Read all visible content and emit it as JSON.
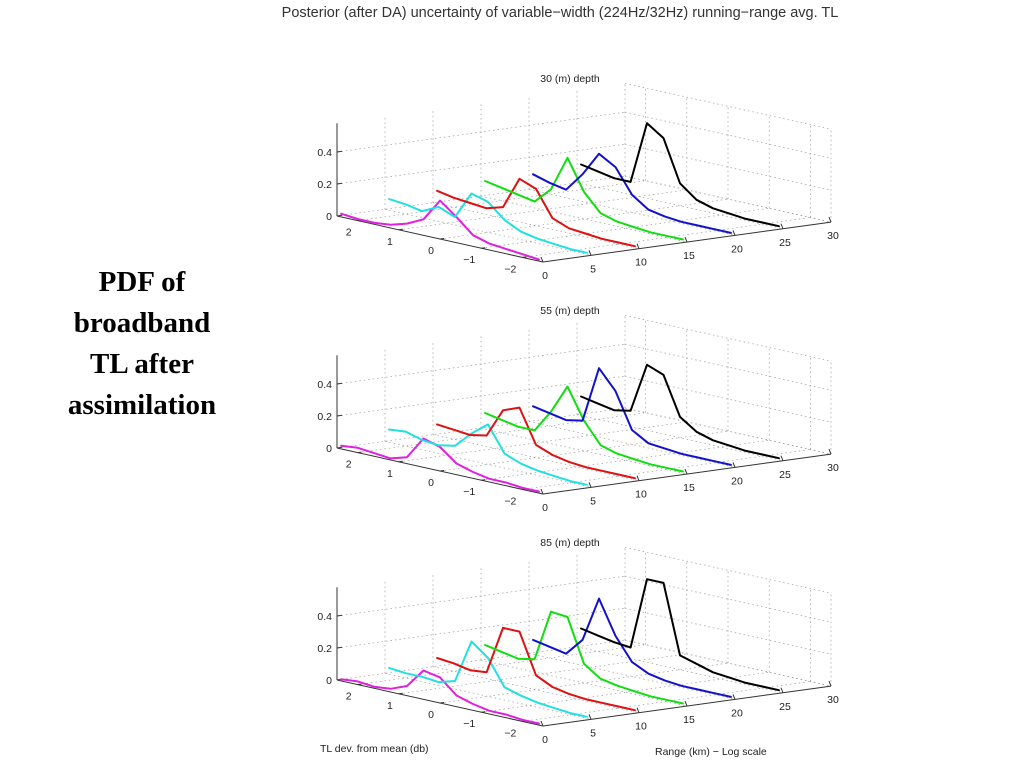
{
  "title": "Posterior (after DA) uncertainty of variable−width (224Hz/32Hz) running−range avg. TL",
  "side_label": [
    "PDF of",
    "broadband",
    "TL after",
    "assimilation"
  ],
  "chart_data": [
    {
      "type": "line",
      "title": "30 (m) depth",
      "xlabel": "TL dev. from mean (db)",
      "ylabel": "Range (km) − Log scale",
      "zlabel": "",
      "x_ticks": [
        "2",
        "1",
        "0",
        "−1",
        "−2"
      ],
      "y_ticks": [
        "0",
        "5",
        "10",
        "15",
        "20",
        "25",
        "30"
      ],
      "z_ticks": [
        "0",
        "0.2",
        "0.4"
      ],
      "xlim": [
        2.5,
        -2.5
      ],
      "ylim": [
        0,
        30
      ],
      "zlim": [
        0,
        0.5
      ],
      "grid": true,
      "x": [
        2.4,
        2.0,
        1.6,
        1.2,
        0.8,
        0.4,
        0.0,
        -0.4,
        -0.8,
        -1.2,
        -1.6,
        -2.0,
        -2.4
      ],
      "series": [
        {
          "range": 0,
          "color": "#e020e0",
          "values": [
            0.02,
            0.01,
            0.01,
            0.02,
            0.05,
            0.1,
            0.24,
            0.16,
            0.07,
            0.04,
            0.03,
            0.02,
            0.01
          ]
        },
        {
          "range": 5,
          "color": "#22e0e0",
          "values": [
            0.07,
            0.06,
            0.04,
            0.09,
            0.05,
            0.22,
            0.19,
            0.1,
            0.05,
            0.03,
            0.02,
            0.01,
            0.01
          ]
        },
        {
          "range": 10,
          "color": "#dd1111",
          "values": [
            0.08,
            0.06,
            0.05,
            0.04,
            0.07,
            0.27,
            0.23,
            0.07,
            0.03,
            0.02,
            0.01,
            0.01,
            0.01
          ]
        },
        {
          "range": 15,
          "color": "#11dd11",
          "values": [
            0.1,
            0.08,
            0.06,
            0.04,
            0.14,
            0.36,
            0.17,
            0.06,
            0.03,
            0.02,
            0.01,
            0.01,
            0.01
          ]
        },
        {
          "range": 20,
          "color": "#1111cc",
          "values": [
            0.1,
            0.07,
            0.05,
            0.17,
            0.32,
            0.26,
            0.11,
            0.04,
            0.02,
            0.01,
            0.01,
            0.01,
            0.01
          ]
        },
        {
          "range": 25,
          "color": "#000000",
          "values": [
            0.12,
            0.1,
            0.08,
            0.08,
            0.47,
            0.4,
            0.14,
            0.06,
            0.03,
            0.02,
            0.01,
            0.01,
            0.01
          ]
        }
      ]
    },
    {
      "type": "line",
      "title": "55 (m) depth",
      "xlabel": "TL dev. from mean (db)",
      "ylabel": "Range (km) − Log scale",
      "zlabel": "",
      "x_ticks": [
        "2",
        "1",
        "0",
        "−1",
        "−2"
      ],
      "y_ticks": [
        "0",
        "5",
        "10",
        "15",
        "20",
        "25",
        "30"
      ],
      "z_ticks": [
        "0",
        "0.2",
        "0.4"
      ],
      "xlim": [
        2.5,
        -2.5
      ],
      "ylim": [
        0,
        30
      ],
      "zlim": [
        0,
        0.5
      ],
      "grid": true,
      "x": [
        2.4,
        2.0,
        1.6,
        1.2,
        0.8,
        0.4,
        0.0,
        -0.4,
        -0.8,
        -1.2,
        -1.6,
        -2.0,
        -2.4
      ],
      "series": [
        {
          "range": 0,
          "color": "#e020e0",
          "values": [
            0.02,
            0.03,
            0.02,
            0.01,
            0.04,
            0.18,
            0.15,
            0.07,
            0.04,
            0.02,
            0.02,
            0.01,
            0.01
          ]
        },
        {
          "range": 5,
          "color": "#22e0e0",
          "values": [
            0.08,
            0.09,
            0.06,
            0.05,
            0.07,
            0.17,
            0.25,
            0.09,
            0.05,
            0.03,
            0.02,
            0.01,
            0.01
          ]
        },
        {
          "range": 10,
          "color": "#dd1111",
          "values": [
            0.07,
            0.06,
            0.05,
            0.07,
            0.25,
            0.29,
            0.08,
            0.04,
            0.02,
            0.01,
            0.01,
            0.01,
            0.01
          ]
        },
        {
          "range": 15,
          "color": "#11dd11",
          "values": [
            0.1,
            0.08,
            0.06,
            0.06,
            0.2,
            0.38,
            0.19,
            0.06,
            0.03,
            0.02,
            0.01,
            0.01,
            0.01
          ]
        },
        {
          "range": 20,
          "color": "#1111cc",
          "values": [
            0.1,
            0.08,
            0.06,
            0.08,
            0.43,
            0.31,
            0.09,
            0.03,
            0.02,
            0.01,
            0.01,
            0.01,
            0.01
          ]
        },
        {
          "range": 25,
          "color": "#000000",
          "values": [
            0.12,
            0.1,
            0.08,
            0.1,
            0.41,
            0.37,
            0.13,
            0.06,
            0.03,
            0.02,
            0.01,
            0.01,
            0.01
          ]
        }
      ]
    },
    {
      "type": "line",
      "title": "85 (m) depth",
      "xlabel": "TL dev. from mean (db)",
      "ylabel": "Range (km) − Log scale",
      "zlabel": "",
      "x_ticks": [
        "2",
        "1",
        "0",
        "−1",
        "−2"
      ],
      "y_ticks": [
        "0",
        "5",
        "10",
        "15",
        "20",
        "25",
        "30"
      ],
      "z_ticks": [
        "0",
        "0.2",
        "0.4"
      ],
      "xlim": [
        2.5,
        -2.5
      ],
      "ylim": [
        0,
        30
      ],
      "zlim": [
        0,
        0.5
      ],
      "grid": true,
      "x": [
        2.4,
        2.0,
        1.6,
        1.2,
        0.8,
        0.4,
        0.0,
        -0.4,
        -0.8,
        -1.2,
        -1.6,
        -2.0,
        -2.4
      ],
      "series": [
        {
          "range": 0,
          "color": "#e020e0",
          "values": [
            0.01,
            0.02,
            0.01,
            0.02,
            0.06,
            0.18,
            0.16,
            0.07,
            0.04,
            0.02,
            0.02,
            0.01,
            0.01
          ]
        },
        {
          "range": 5,
          "color": "#22e0e0",
          "values": [
            0.04,
            0.03,
            0.03,
            0.02,
            0.05,
            0.32,
            0.24,
            0.08,
            0.05,
            0.03,
            0.02,
            0.01,
            0.01
          ]
        },
        {
          "range": 10,
          "color": "#dd1111",
          "values": [
            0.06,
            0.05,
            0.03,
            0.04,
            0.34,
            0.34,
            0.09,
            0.04,
            0.02,
            0.01,
            0.01,
            0.01,
            0.01
          ]
        },
        {
          "range": 15,
          "color": "#11dd11",
          "values": [
            0.1,
            0.08,
            0.06,
            0.08,
            0.4,
            0.39,
            0.12,
            0.05,
            0.03,
            0.02,
            0.01,
            0.01,
            0.01
          ]
        },
        {
          "range": 20,
          "color": "#1111cc",
          "values": [
            0.09,
            0.07,
            0.05,
            0.16,
            0.44,
            0.23,
            0.09,
            0.04,
            0.02,
            0.01,
            0.01,
            0.01,
            0.01
          ]
        },
        {
          "range": 25,
          "color": "#000000",
          "values": [
            0.12,
            0.1,
            0.08,
            0.07,
            0.52,
            0.52,
            0.09,
            0.06,
            0.03,
            0.02,
            0.01,
            0.01,
            0.01
          ]
        }
      ]
    }
  ]
}
